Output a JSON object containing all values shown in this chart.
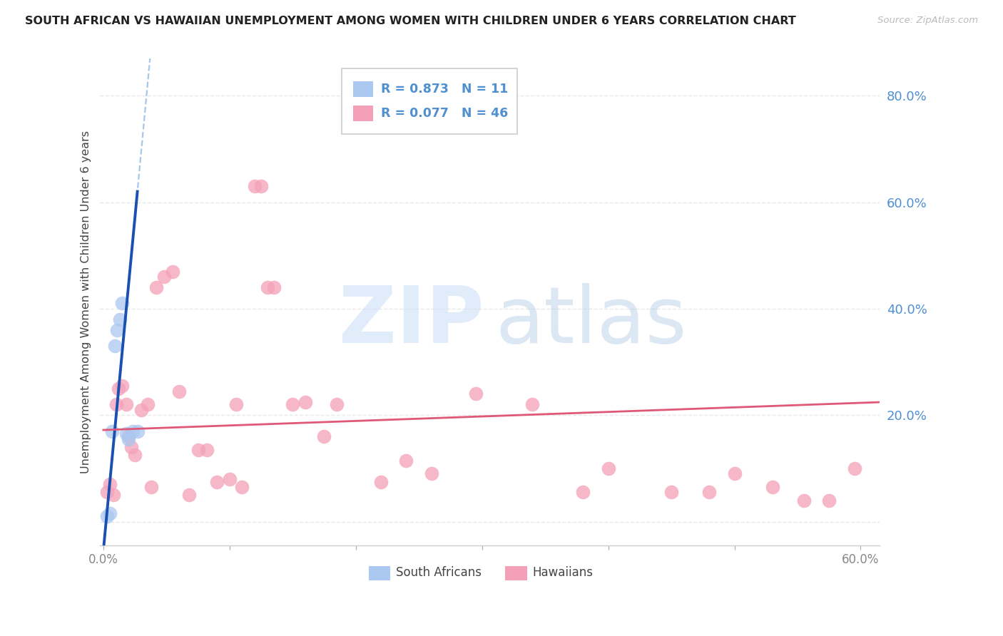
{
  "title": "SOUTH AFRICAN VS HAWAIIAN UNEMPLOYMENT AMONG WOMEN WITH CHILDREN UNDER 6 YEARS CORRELATION CHART",
  "source": "Source: ZipAtlas.com",
  "ylabel": "Unemployment Among Women with Children Under 6 years",
  "watermark_zip": "ZIP",
  "watermark_atlas": "atlas",
  "xlim": [
    -0.003,
    0.615
  ],
  "ylim": [
    -0.045,
    0.87
  ],
  "yticks": [
    0.0,
    0.2,
    0.4,
    0.6,
    0.8
  ],
  "xticks": [
    0.0,
    0.1,
    0.2,
    0.3,
    0.4,
    0.5,
    0.6
  ],
  "xtick_labels": [
    "0.0%",
    "",
    "",
    "",
    "",
    "",
    "60.0%"
  ],
  "ytick_labels": [
    "",
    "20.0%",
    "40.0%",
    "60.0%",
    "80.0%"
  ],
  "blue_R": 0.873,
  "blue_N": 11,
  "pink_R": 0.077,
  "pink_N": 46,
  "blue_scatter_color": "#aac8f0",
  "pink_scatter_color": "#f4a0b8",
  "blue_line_solid_color": "#1a50b0",
  "blue_line_dash_color": "#80b0e0",
  "pink_line_color": "#e05878",
  "title_color": "#222222",
  "right_tick_color": "#5090d0",
  "bottom_tick_color": "#888888",
  "legend_text_color": "#5090d0",
  "watermark_zip_color": "#cce0f8",
  "watermark_atlas_color": "#b0cce8",
  "grid_color": "#e8e8e8",
  "blue_scatter_x": [
    0.003,
    0.005,
    0.007,
    0.009,
    0.011,
    0.013,
    0.015,
    0.018,
    0.02,
    0.023,
    0.027
  ],
  "blue_scatter_y": [
    0.01,
    0.015,
    0.17,
    0.33,
    0.36,
    0.38,
    0.41,
    0.165,
    0.155,
    0.17,
    0.17
  ],
  "pink_scatter_x": [
    0.003,
    0.005,
    0.008,
    0.01,
    0.012,
    0.015,
    0.018,
    0.02,
    0.022,
    0.025,
    0.03,
    0.035,
    0.038,
    0.042,
    0.048,
    0.055,
    0.06,
    0.068,
    0.075,
    0.082,
    0.09,
    0.1,
    0.105,
    0.11,
    0.12,
    0.125,
    0.13,
    0.135,
    0.15,
    0.16,
    0.175,
    0.185,
    0.22,
    0.24,
    0.26,
    0.295,
    0.34,
    0.38,
    0.4,
    0.45,
    0.48,
    0.5,
    0.53,
    0.555,
    0.575,
    0.595
  ],
  "pink_scatter_y": [
    0.055,
    0.07,
    0.05,
    0.22,
    0.25,
    0.255,
    0.22,
    0.16,
    0.14,
    0.125,
    0.21,
    0.22,
    0.065,
    0.44,
    0.46,
    0.47,
    0.245,
    0.05,
    0.135,
    0.135,
    0.075,
    0.08,
    0.22,
    0.065,
    0.63,
    0.63,
    0.44,
    0.44,
    0.22,
    0.225,
    0.16,
    0.22,
    0.075,
    0.115,
    0.09,
    0.24,
    0.22,
    0.055,
    0.1,
    0.055,
    0.055,
    0.09,
    0.065,
    0.04,
    0.04,
    0.1
  ],
  "blue_line_slope": 25.0,
  "blue_line_intercept": -0.055,
  "pink_line_slope": 0.085,
  "pink_line_intercept": 0.172
}
